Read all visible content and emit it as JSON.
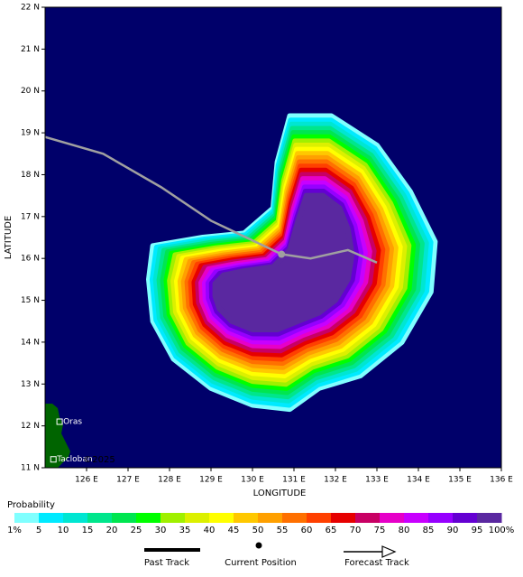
{
  "chart_data": {
    "type": "map",
    "xlabel": "LONGITUDE",
    "ylabel": "LATITUDE",
    "xlim": [
      125,
      136
    ],
    "ylim": [
      11,
      22
    ],
    "background": "#00006a",
    "xticks": [
      {
        "value": 126,
        "label": "126 E"
      },
      {
        "value": 127,
        "label": "127 E"
      },
      {
        "value": 128,
        "label": "128 E"
      },
      {
        "value": 129,
        "label": "129 E"
      },
      {
        "value": 130,
        "label": "130 E"
      },
      {
        "value": 131,
        "label": "131 E"
      },
      {
        "value": 132,
        "label": "132 E"
      },
      {
        "value": 133,
        "label": "133 E"
      },
      {
        "value": 134,
        "label": "134 E"
      },
      {
        "value": 135,
        "label": "135 E"
      },
      {
        "value": 136,
        "label": "136 E"
      }
    ],
    "yticks": [
      {
        "value": 11,
        "label": "11 N"
      },
      {
        "value": 12,
        "label": "12 N"
      },
      {
        "value": 13,
        "label": "13 N"
      },
      {
        "value": 14,
        "label": "14 N"
      },
      {
        "value": 15,
        "label": "15 N"
      },
      {
        "value": 16,
        "label": "16 N"
      },
      {
        "value": 17,
        "label": "17 N"
      },
      {
        "value": 18,
        "label": "18 N"
      },
      {
        "value": 19,
        "label": "19 N"
      },
      {
        "value": 20,
        "label": "20 N"
      },
      {
        "value": 21,
        "label": "21 N"
      },
      {
        "value": 22,
        "label": "22 N"
      }
    ],
    "colorbar": {
      "title": "Probability",
      "levels": [
        {
          "value": 1,
          "label": "1%"
        },
        5,
        10,
        15,
        20,
        25,
        30,
        35,
        40,
        45,
        50,
        55,
        60,
        65,
        70,
        75,
        80,
        85,
        90,
        95,
        {
          "value": 100,
          "label": "100%"
        }
      ],
      "colors": [
        "#80ffff",
        "#00eaff",
        "#00e6d2",
        "#00e68c",
        "#00e650",
        "#00ff00",
        "#a0f000",
        "#dcf000",
        "#ffff00",
        "#ffc800",
        "#ffa000",
        "#ff7000",
        "#ff4000",
        "#e60000",
        "#c80064",
        "#e600c8",
        "#c800ff",
        "#9600ff",
        "#6400d2",
        "#5a28a0"
      ]
    },
    "probability_field": {
      "outer": {
        "lon": [
          130.9,
          131.9,
          133.0,
          133.8,
          134.4,
          134.3,
          133.6,
          132.6,
          131.6,
          130.9,
          130.0,
          129.0,
          128.1,
          127.6,
          127.5,
          127.6,
          128.8,
          129.8,
          130.5,
          130.6
        ],
        "lat": [
          19.4,
          19.4,
          18.7,
          17.6,
          16.4,
          15.2,
          14.0,
          13.2,
          12.9,
          12.4,
          12.5,
          12.9,
          13.6,
          14.5,
          15.5,
          16.3,
          16.5,
          16.6,
          17.2,
          18.3
        ]
      },
      "inner": {
        "lon": [
          131.3,
          131.7,
          132.1,
          132.3,
          132.4,
          132.3,
          132.0,
          131.6,
          131.1,
          130.6,
          130.0,
          129.5,
          129.2,
          129.1,
          129.1,
          129.3,
          129.8,
          130.5,
          130.9,
          131.1
        ],
        "lat": [
          17.5,
          17.5,
          17.2,
          16.7,
          16.1,
          15.5,
          15.0,
          14.7,
          14.5,
          14.3,
          14.3,
          14.5,
          14.8,
          15.1,
          15.4,
          15.6,
          15.7,
          15.8,
          16.2,
          16.9
        ]
      }
    },
    "past_track": {
      "lon": [
        125.0,
        126.4,
        127.8,
        129.0,
        130.7
      ],
      "lat": [
        18.9,
        18.5,
        17.7,
        16.9,
        16.1
      ]
    },
    "current_position": {
      "lon": 130.7,
      "lat": 16.1
    },
    "forecast_track": {
      "lon": [
        130.7,
        131.4,
        132.3,
        133.0
      ],
      "lat": [
        16.1,
        16.0,
        16.2,
        15.9
      ]
    },
    "places": [
      {
        "name": "Oras",
        "lon": 125.35,
        "lat": 12.1
      },
      {
        "name": "Tacloban",
        "lon": 125.2,
        "lat": 11.2
      }
    ],
    "watermark": "©2025",
    "legend": {
      "past": "Past Track",
      "current": "Current Position",
      "forecast": "Forecast Track"
    }
  }
}
